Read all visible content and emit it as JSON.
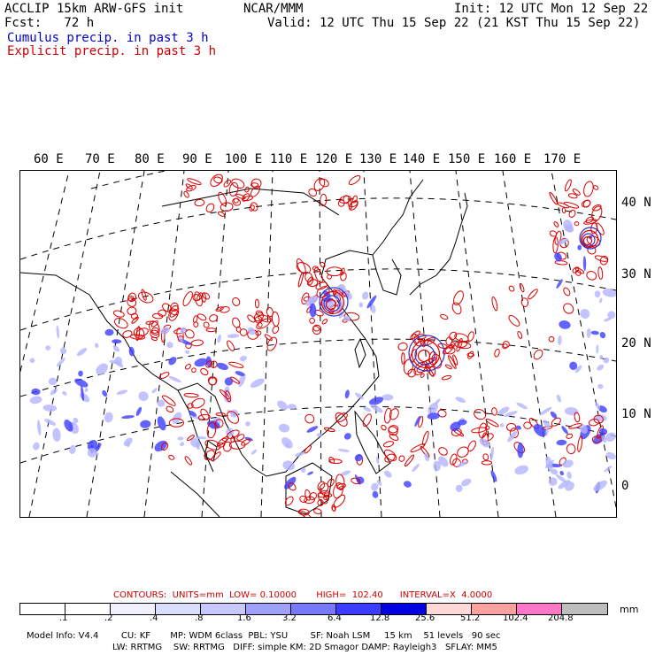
{
  "header": {
    "left1": "ACCLIP 15km ARW-GFS init",
    "left2": "Fcst:   72 h",
    "center": "NCAR/MMM",
    "right1": "Init: 12 UTC Mon 12 Sep 22",
    "right2": "Valid: 12 UTC Thu 15 Sep 22 (21 KST Thu 15 Sep 22)",
    "legend_cumulus": "Cumulus precip. in past 3 h",
    "legend_explicit": "Explicit precip. in past 3 h"
  },
  "map": {
    "lon_labels": [
      "60 E",
      "70 E",
      "80 E",
      "90 E",
      "100 E",
      "110 E",
      "120 E",
      "130 E",
      "140 E",
      "150 E",
      "160 E",
      "170 E"
    ],
    "lat_labels": [
      "40 N",
      "30 N",
      "20 N",
      "10 N",
      "0"
    ],
    "colors": {
      "cumulus": "#3333cc",
      "explicit": "#dd0000",
      "coast": "#000000"
    }
  },
  "contours": "CONTOURS:  UNITS=mm  LOW= 0.10000       HIGH=  102.40      INTERVAL=X  4.0000",
  "colorbar": {
    "colors": [
      "#ffffff",
      "#ffffff",
      "#f0f0ff",
      "#dcdcff",
      "#c8c8ff",
      "#a0a0ff",
      "#7878ff",
      "#3c3cff",
      "#0000e0",
      "#ffd8d8",
      "#ffa0a0",
      "#ff78c8",
      "#bebebe",
      "#3c3c3c",
      "#c8a0ff"
    ],
    "labels": [
      ".1",
      ".2",
      ".4",
      ".8",
      "1.6",
      "3.2",
      "6.4",
      "12.8",
      "25.6",
      "51.2",
      "102.4",
      "204.8"
    ],
    "unit": "mm"
  },
  "model_info": {
    "line1": "Model Info: V4.4        CU: KF       MP: WDM 6class  PBL: YSU        SF: Noah LSM     15 km    51 levels   90 sec",
    "line2": "LW: RRTMG    SW: RRTMG   DIFF: simple KM: 2D Smagor DAMP: Rayleigh3   SFLAY: MM5"
  }
}
